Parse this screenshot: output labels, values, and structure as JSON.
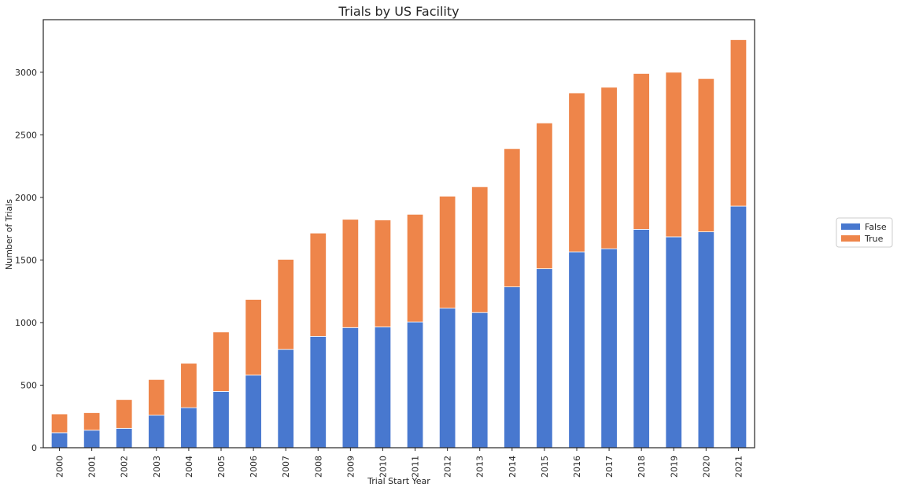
{
  "chart_data": {
    "type": "bar",
    "stacked": true,
    "title": "Trials by US Facility",
    "xlabel": "Trial Start Year",
    "ylabel": "Number of Trials",
    "categories": [
      "2000",
      "2001",
      "2002",
      "2003",
      "2004",
      "2005",
      "2006",
      "2007",
      "2008",
      "2009",
      "2010",
      "2011",
      "2012",
      "2013",
      "2014",
      "2015",
      "2016",
      "2017",
      "2018",
      "2019",
      "2020",
      "2021"
    ],
    "series": [
      {
        "name": "False",
        "color": "#4878cf",
        "values": [
          120,
          140,
          155,
          260,
          320,
          450,
          580,
          785,
          890,
          960,
          965,
          1005,
          1115,
          1080,
          1285,
          1430,
          1565,
          1590,
          1745,
          1685,
          1725,
          1930
        ]
      },
      {
        "name": "True",
        "color": "#ee854a",
        "values": [
          150,
          140,
          230,
          285,
          355,
          475,
          605,
          720,
          825,
          865,
          855,
          860,
          895,
          1005,
          1105,
          1165,
          1270,
          1290,
          1245,
          1315,
          1225,
          1330
        ]
      }
    ],
    "yticks": [
      0,
      500,
      1000,
      1500,
      2000,
      2500,
      3000
    ],
    "ylim": [
      0,
      3420
    ],
    "grid": false,
    "legend_position": "right"
  }
}
